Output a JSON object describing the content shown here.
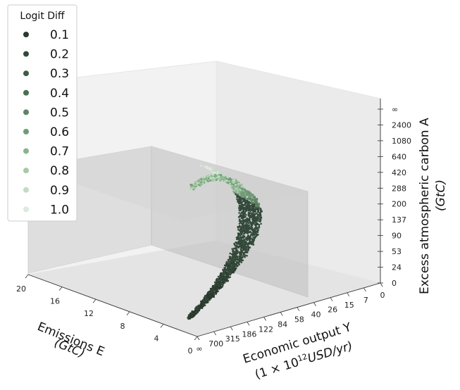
{
  "chart_data": {
    "type": "scatter",
    "projection": "3d",
    "legend": {
      "title": "Logit Diff",
      "placement": "top-left",
      "entries": [
        {
          "label": "0.1",
          "color": "#2b3a2e"
        },
        {
          "label": "0.2",
          "color": "#33493a"
        },
        {
          "label": "0.3",
          "color": "#3c5c44"
        },
        {
          "label": "0.4",
          "color": "#4b6e52"
        },
        {
          "label": "0.5",
          "color": "#5e8464"
        },
        {
          "label": "0.6",
          "color": "#719a77"
        },
        {
          "label": "0.7",
          "color": "#8ab48f"
        },
        {
          "label": "0.8",
          "color": "#a7c9a8"
        },
        {
          "label": "0.9",
          "color": "#c3dcc3"
        },
        {
          "label": "1.0",
          "color": "#dcebdc"
        }
      ]
    },
    "axes": {
      "x": {
        "label_line1": "Emissions E",
        "label_line2": "(GtC)",
        "ticks": [
          "0",
          "4",
          "8",
          "12",
          "16",
          "20"
        ],
        "range": [
          0,
          20
        ]
      },
      "y": {
        "label_line1": "Economic output Y",
        "label_line2_prefix": "(1 × 10",
        "label_line2_sup": "12",
        "label_line2_suffix": "USD/yr)",
        "ticks": [
          "0",
          "7",
          "15",
          "26",
          "40",
          "58",
          "84",
          "122",
          "186",
          "315",
          "700",
          "∞"
        ]
      },
      "z": {
        "label_line1": "Excess atmospheric carbon A",
        "label_line2": "(GtC)",
        "ticks": [
          "0",
          "24",
          "53",
          "90",
          "137",
          "200",
          "288",
          "420",
          "640",
          "1080",
          "2400",
          "∞"
        ]
      }
    },
    "grid": false,
    "plane": {
      "description_value": "A ≈ 200 GtC",
      "color": "#bdbdbd"
    },
    "series_summary": "Point cloud forming a curved band from low E/high Y/low A rising to high A; darker colors (low logit diff) along the lower curve, lighter colors near the top fan"
  }
}
